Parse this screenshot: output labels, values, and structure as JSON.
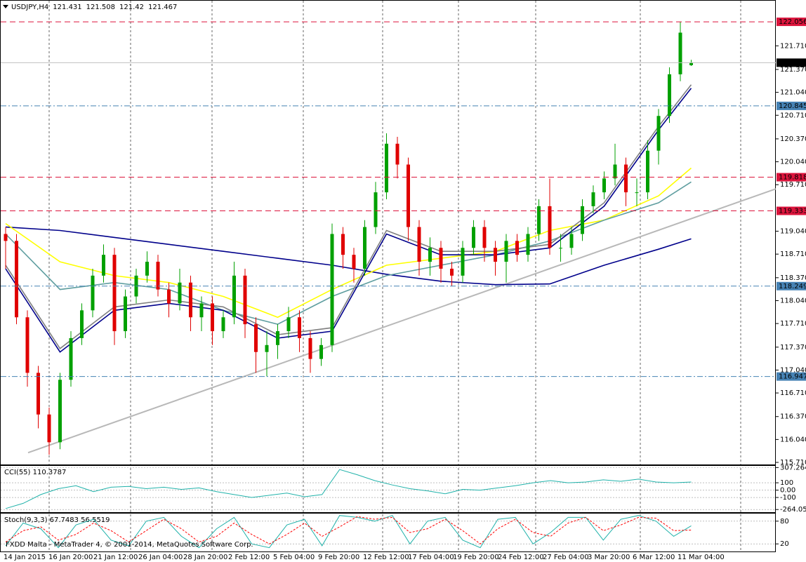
{
  "chart_data": [
    {
      "type": "candlestick",
      "title": "USDJPY,H4",
      "x_labels": [
        "14 Jan 2015",
        "16 Jan 20:00",
        "21 Jan 12:00",
        "26 Jan 04:00",
        "28 Jan 20:00",
        "2 Feb 12:00",
        "5 Feb 04:00",
        "9 Feb 20:00",
        "12 Feb 12:00",
        "17 Feb 04:00",
        "19 Feb 20:00",
        "24 Feb 12:00",
        "27 Feb 04:00",
        "3 Mar 20:00",
        "6 Mar 12:00",
        "11 Mar 04:00"
      ],
      "open": [
        119.0,
        118.9,
        117.8,
        117.0,
        116.4,
        116.0,
        116.9,
        117.5,
        117.9,
        118.4,
        118.7,
        117.6,
        118.1,
        118.4,
        118.6,
        118.2,
        118.0,
        118.3,
        117.8,
        118.0,
        117.6,
        117.8,
        118.4,
        117.7,
        117.3,
        117.4,
        117.6,
        117.8,
        117.5,
        117.2,
        117.4,
        119.0,
        118.7,
        118.5,
        119.1,
        119.6,
        120.3,
        120.0,
        119.1,
        118.6,
        118.8,
        118.5,
        118.4,
        118.8,
        119.1,
        118.8,
        118.6,
        118.9,
        118.7,
        119.0,
        119.4,
        118.8,
        118.8,
        119.0,
        119.4,
        119.6,
        119.8,
        120.0,
        119.6,
        119.6,
        120.2,
        120.7,
        121.3,
        121.431
      ],
      "high": [
        119.1,
        119.0,
        117.9,
        117.1,
        116.5,
        117.0,
        117.6,
        118.0,
        118.5,
        118.85,
        118.8,
        118.2,
        118.5,
        118.75,
        118.7,
        118.3,
        118.5,
        118.4,
        118.1,
        118.1,
        117.9,
        118.6,
        118.5,
        117.8,
        117.6,
        117.7,
        117.95,
        117.9,
        117.6,
        117.5,
        119.15,
        119.1,
        118.8,
        119.2,
        119.75,
        120.45,
        120.4,
        120.1,
        119.2,
        118.95,
        118.9,
        118.6,
        118.9,
        119.2,
        119.2,
        118.9,
        119.0,
        119.0,
        119.1,
        119.5,
        119.8,
        119.0,
        119.1,
        119.5,
        119.7,
        119.9,
        120.3,
        120.1,
        119.8,
        120.35,
        120.8,
        121.4,
        122.056,
        121.508
      ],
      "low": [
        118.5,
        117.7,
        116.8,
        116.2,
        115.82,
        115.9,
        116.8,
        117.4,
        117.8,
        118.3,
        117.4,
        117.5,
        118.0,
        118.3,
        118.1,
        117.8,
        117.9,
        117.6,
        117.6,
        117.4,
        117.5,
        117.7,
        117.5,
        117.0,
        116.95,
        117.2,
        117.5,
        117.3,
        117.0,
        117.1,
        117.3,
        118.5,
        118.3,
        118.4,
        119.0,
        119.5,
        119.8,
        118.9,
        118.4,
        118.4,
        118.3,
        118.25,
        118.3,
        118.7,
        118.6,
        118.4,
        118.3,
        118.6,
        118.6,
        118.9,
        118.7,
        118.6,
        118.7,
        118.9,
        119.3,
        119.5,
        119.7,
        119.4,
        119.4,
        119.5,
        120.0,
        120.6,
        121.2,
        121.42
      ],
      "close": [
        118.9,
        117.8,
        117.0,
        116.4,
        116.0,
        116.9,
        117.5,
        117.9,
        118.4,
        118.7,
        117.6,
        118.1,
        118.4,
        118.6,
        118.2,
        118.0,
        118.3,
        117.8,
        118.0,
        117.6,
        117.8,
        118.4,
        117.7,
        117.3,
        117.4,
        117.6,
        117.8,
        117.5,
        117.2,
        117.4,
        119.0,
        118.7,
        118.5,
        119.1,
        119.6,
        120.3,
        120.0,
        119.1,
        118.6,
        118.8,
        118.5,
        118.4,
        118.8,
        119.1,
        118.8,
        118.6,
        118.9,
        118.7,
        119.0,
        119.4,
        118.8,
        118.8,
        119.0,
        119.4,
        119.6,
        119.8,
        120.0,
        119.6,
        119.6,
        120.2,
        120.7,
        121.3,
        121.9,
        121.467
      ],
      "series": [
        {
          "color": "#00008b",
          "x": [
            0,
            5,
            10,
            15,
            20,
            25,
            30,
            35,
            40,
            45,
            50,
            55,
            60,
            63
          ],
          "values": [
            119.1,
            119.05,
            118.95,
            118.85,
            118.75,
            118.65,
            118.55,
            118.42,
            118.32,
            118.27,
            118.28,
            118.55,
            118.78,
            118.93
          ]
        },
        {
          "color": "#ffff00",
          "x": [
            0,
            5,
            10,
            15,
            20,
            25,
            30,
            35,
            40,
            45,
            50,
            55,
            60,
            63
          ],
          "values": [
            119.15,
            118.6,
            118.4,
            118.3,
            118.1,
            117.8,
            118.2,
            118.55,
            118.65,
            118.75,
            119.05,
            119.2,
            119.55,
            119.95
          ]
        },
        {
          "color": "#5f9ea0",
          "x": [
            0,
            5,
            10,
            15,
            20,
            25,
            30,
            35,
            40,
            45,
            50,
            55,
            60,
            63
          ],
          "values": [
            119.0,
            118.2,
            118.3,
            118.2,
            117.9,
            117.7,
            118.1,
            118.4,
            118.55,
            118.7,
            118.9,
            119.2,
            119.45,
            119.75
          ]
        },
        {
          "color": "#808080",
          "x": [
            0,
            5,
            10,
            15,
            20,
            25,
            30,
            35,
            40,
            45,
            50,
            55,
            60,
            63
          ],
          "values": [
            118.55,
            117.35,
            117.95,
            118.05,
            117.95,
            117.55,
            117.65,
            119.05,
            118.75,
            118.75,
            118.85,
            119.45,
            120.55,
            121.15
          ]
        },
        {
          "color": "#00008b",
          "x": [
            0,
            5,
            10,
            15,
            20,
            25,
            30,
            35,
            40,
            45,
            50,
            55,
            60,
            63
          ],
          "values": [
            118.5,
            117.3,
            117.9,
            118.0,
            117.9,
            117.5,
            117.6,
            119.0,
            118.7,
            118.7,
            118.8,
            119.4,
            120.5,
            121.1
          ]
        }
      ],
      "levels": [
        {
          "value": 122.056,
          "color": "#dc143c"
        },
        {
          "value": 120.845,
          "color": "#4682b4"
        },
        {
          "value": 119.818,
          "color": "#dc143c"
        },
        {
          "value": 119.333,
          "color": "#dc143c"
        },
        {
          "value": 118.249,
          "color": "#4682b4"
        },
        {
          "value": 116.947,
          "color": "#4682b4"
        }
      ],
      "current_price": 121.467,
      "trendline": {
        "start": 115.85,
        "end": 119.65
      },
      "ylim": [
        115.68,
        122.36
      ],
      "yticks": [
        {
          "value": 121.71,
          "label": "121.710"
        },
        {
          "value": 121.37,
          "label": "121.370"
        },
        {
          "value": 121.04,
          "label": "121.040"
        },
        {
          "value": 120.71,
          "label": "120.710"
        },
        {
          "value": 120.37,
          "label": "120.370"
        },
        {
          "value": 120.04,
          "label": "120.040"
        },
        {
          "value": 119.71,
          "label": "119.710"
        },
        {
          "value": 119.04,
          "label": "119.040"
        },
        {
          "value": 118.71,
          "label": "118.710"
        },
        {
          "value": 118.37,
          "label": "118.370"
        },
        {
          "value": 118.04,
          "label": "118.040"
        },
        {
          "value": 117.71,
          "label": "117.710"
        },
        {
          "value": 117.37,
          "label": "117.370"
        },
        {
          "value": 117.04,
          "label": "117.040"
        },
        {
          "value": 116.71,
          "label": "116.710"
        },
        {
          "value": 116.37,
          "label": "116.370"
        },
        {
          "value": 116.04,
          "label": "116.040"
        },
        {
          "value": 115.71,
          "label": "115.710"
        }
      ]
    },
    {
      "type": "line",
      "title": "CCI(55) 110.3787",
      "color": "#20b2aa",
      "values": [
        -250,
        -180,
        -60,
        20,
        60,
        -20,
        40,
        50,
        20,
        40,
        10,
        30,
        -20,
        -60,
        -100,
        -70,
        -40,
        -90,
        -60,
        280,
        210,
        130,
        70,
        20,
        -10,
        -50,
        10,
        0,
        30,
        60,
        100,
        130,
        100,
        110,
        140,
        120,
        150,
        110,
        100,
        110.3787
      ],
      "ylim": [
        -300,
        330
      ],
      "yticks": [
        307.2645,
        100,
        {
          "value": 0,
          "label": "0.00"
        },
        -100,
        -264.0543
      ]
    },
    {
      "type": "line",
      "title": "Stoch(9,3,3) 67.7483 56.5519",
      "series": [
        {
          "color": "#20b2aa",
          "values": [
            15,
            75,
            60,
            10,
            70,
            85,
            30,
            15,
            80,
            90,
            40,
            10,
            60,
            90,
            20,
            10,
            70,
            85,
            15,
            95,
            90,
            80,
            95,
            20,
            80,
            90,
            30,
            10,
            85,
            90,
            20,
            50,
            90,
            90,
            30,
            85,
            95,
            80,
            40,
            67.7483
          ]
        },
        {
          "color": "#ff0000",
          "dashed": true,
          "values": [
            25,
            55,
            65,
            30,
            45,
            75,
            55,
            25,
            55,
            85,
            60,
            25,
            40,
            75,
            45,
            20,
            45,
            75,
            40,
            65,
            92,
            85,
            90,
            50,
            60,
            85,
            55,
            20,
            60,
            85,
            50,
            40,
            75,
            90,
            55,
            70,
            90,
            88,
            55,
            56.5519
          ]
        }
      ],
      "ylim": [
        0,
        100
      ],
      "yticks": [
        80,
        20
      ],
      "annotation": "FXDD Malta - MetaTrader 4, © 2001-2014, MetaQuotes Software Corp."
    }
  ]
}
